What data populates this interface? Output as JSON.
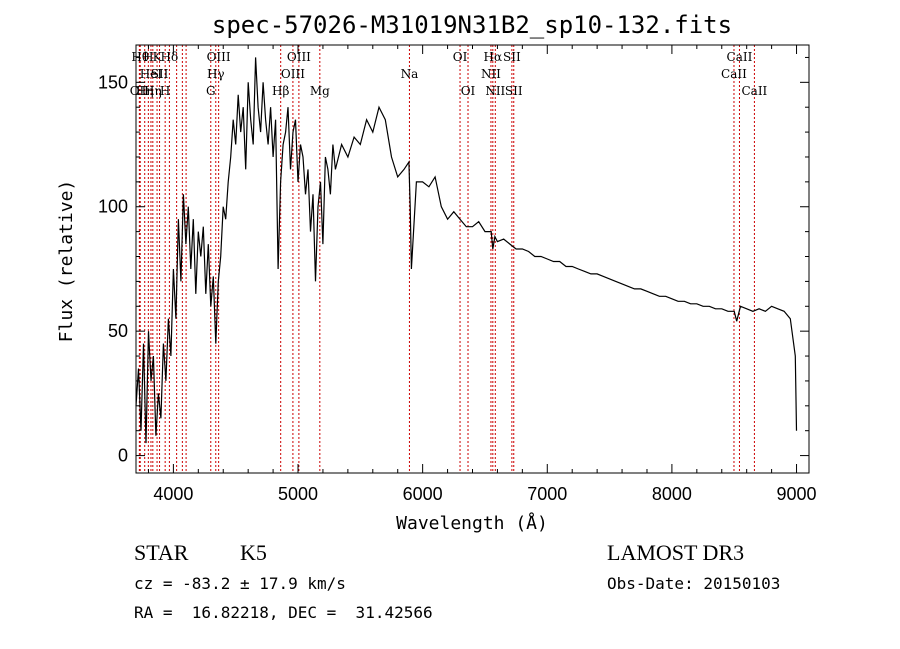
{
  "chart_data": {
    "type": "line",
    "title": "spec-57026-M31019N31B2_sp10-132.fits",
    "xlabel": "Wavelength (Å)",
    "ylabel": "Flux (relative)",
    "xlim": [
      3700,
      9100
    ],
    "ylim": [
      -7,
      165
    ],
    "xticks": [
      4000,
      5000,
      6000,
      7000,
      8000,
      9000
    ],
    "yticks": [
      0,
      50,
      100,
      150
    ],
    "grid": false,
    "spectrum": {
      "name": "flux",
      "x": [
        3700,
        3720,
        3740,
        3760,
        3780,
        3800,
        3820,
        3840,
        3860,
        3880,
        3900,
        3920,
        3940,
        3960,
        3980,
        4000,
        4020,
        4040,
        4060,
        4080,
        4100,
        4120,
        4140,
        4160,
        4180,
        4200,
        4220,
        4240,
        4260,
        4280,
        4300,
        4320,
        4340,
        4360,
        4380,
        4400,
        4420,
        4440,
        4460,
        4480,
        4500,
        4520,
        4540,
        4560,
        4580,
        4600,
        4620,
        4640,
        4660,
        4680,
        4700,
        4720,
        4740,
        4760,
        4780,
        4800,
        4820,
        4840,
        4860,
        4880,
        4900,
        4920,
        4940,
        4960,
        4980,
        5000,
        5020,
        5040,
        5060,
        5080,
        5100,
        5120,
        5140,
        5160,
        5180,
        5200,
        5220,
        5240,
        5260,
        5280,
        5300,
        5350,
        5400,
        5450,
        5500,
        5550,
        5600,
        5650,
        5700,
        5750,
        5800,
        5850,
        5890,
        5900,
        5910,
        5950,
        6000,
        6050,
        6100,
        6150,
        6200,
        6250,
        6300,
        6350,
        6400,
        6450,
        6500,
        6550,
        6563,
        6580,
        6600,
        6650,
        6700,
        6750,
        6800,
        6850,
        6900,
        6950,
        7000,
        7050,
        7100,
        7150,
        7200,
        7250,
        7300,
        7350,
        7400,
        7450,
        7500,
        7550,
        7600,
        7650,
        7700,
        7750,
        7800,
        7850,
        7900,
        7950,
        8000,
        8050,
        8100,
        8150,
        8200,
        8250,
        8300,
        8350,
        8400,
        8450,
        8500,
        8520,
        8550,
        8600,
        8650,
        8700,
        8750,
        8800,
        8850,
        8900,
        8950,
        8990,
        8995,
        9000
      ],
      "y": [
        20,
        35,
        10,
        45,
        5,
        50,
        30,
        40,
        8,
        25,
        15,
        45,
        30,
        55,
        40,
        75,
        55,
        95,
        70,
        105,
        85,
        100,
        75,
        95,
        65,
        90,
        80,
        92,
        65,
        85,
        60,
        72,
        45,
        70,
        80,
        100,
        95,
        110,
        120,
        135,
        125,
        145,
        130,
        140,
        115,
        150,
        135,
        125,
        160,
        140,
        130,
        150,
        135,
        125,
        140,
        120,
        135,
        75,
        110,
        125,
        130,
        140,
        115,
        130,
        135,
        110,
        125,
        120,
        105,
        115,
        90,
        105,
        70,
        100,
        110,
        85,
        120,
        115,
        105,
        125,
        115,
        125,
        120,
        128,
        125,
        135,
        130,
        140,
        135,
        120,
        112,
        115,
        118,
        100,
        75,
        110,
        110,
        108,
        112,
        100,
        95,
        98,
        95,
        92,
        92,
        94,
        90,
        90,
        83,
        88,
        86,
        87,
        85,
        83,
        83,
        82,
        80,
        80,
        79,
        78,
        78,
        76,
        76,
        75,
        74,
        73,
        73,
        72,
        71,
        70,
        69,
        68,
        67,
        67,
        66,
        65,
        64,
        64,
        63,
        62,
        62,
        61,
        61,
        60,
        60,
        59,
        59,
        58,
        58,
        54,
        60,
        59,
        58,
        59,
        58,
        60,
        59,
        58,
        55,
        40,
        25,
        10
      ]
    },
    "lines": [
      {
        "wl": 3734,
        "label": "Hθ",
        "row": 1
      },
      {
        "wl": 3727,
        "label": "OII",
        "row": 3
      },
      {
        "wl": 3770,
        "label": "Hη",
        "row": 3
      },
      {
        "wl": 3799,
        "label": "H",
        "row": 1
      },
      {
        "wl": 3820,
        "label": "HeI",
        "row": 2
      },
      {
        "wl": 3835,
        "label": "Hη",
        "row": 3
      },
      {
        "wl": 3869,
        "label": "K",
        "row": 1
      },
      {
        "wl": 3889,
        "label": "SII",
        "row": 2
      },
      {
        "wl": 3934,
        "label": "H",
        "row": 3
      },
      {
        "wl": 3968,
        "label": "Hδ",
        "row": 1
      },
      {
        "wl": 4026,
        "label": "",
        "row": 2
      },
      {
        "wl": 4072,
        "label": "",
        "row": 2
      },
      {
        "wl": 4102,
        "label": "",
        "row": 1
      },
      {
        "wl": 4300,
        "label": "G",
        "row": 3
      },
      {
        "wl": 4340,
        "label": "Hγ",
        "row": 2
      },
      {
        "wl": 4363,
        "label": "OIII",
        "row": 1
      },
      {
        "wl": 4861,
        "label": "Hβ",
        "row": 3
      },
      {
        "wl": 4959,
        "label": "OIII",
        "row": 2
      },
      {
        "wl": 5007,
        "label": "OIII",
        "row": 1
      },
      {
        "wl": 5175,
        "label": "Mg",
        "row": 3
      },
      {
        "wl": 5894,
        "label": "Na",
        "row": 2
      },
      {
        "wl": 6300,
        "label": "OI",
        "row": 1
      },
      {
        "wl": 6364,
        "label": "OI",
        "row": 3
      },
      {
        "wl": 6548,
        "label": "NII",
        "row": 2
      },
      {
        "wl": 6563,
        "label": "Hα",
        "row": 1
      },
      {
        "wl": 6583,
        "label": "NII",
        "row": 3
      },
      {
        "wl": 6716,
        "label": "SII",
        "row": 1
      },
      {
        "wl": 6731,
        "label": "SII",
        "row": 3
      },
      {
        "wl": 8498,
        "label": "CaII",
        "row": 2
      },
      {
        "wl": 8542,
        "label": "CaII",
        "row": 1
      },
      {
        "wl": 8662,
        "label": "CaII",
        "row": 3
      }
    ]
  },
  "info": {
    "class": "STAR",
    "subclass": "K5",
    "survey": "LAMOST DR3",
    "cz": "cz = -83.2 ± 17.9 km/s",
    "obs_date": "Obs-Date: 20150103",
    "radec": "RA =  16.82218, DEC =  31.42566"
  },
  "colors": {
    "line": "#000000",
    "marker": "#cc0000",
    "background": "#ffffff"
  }
}
